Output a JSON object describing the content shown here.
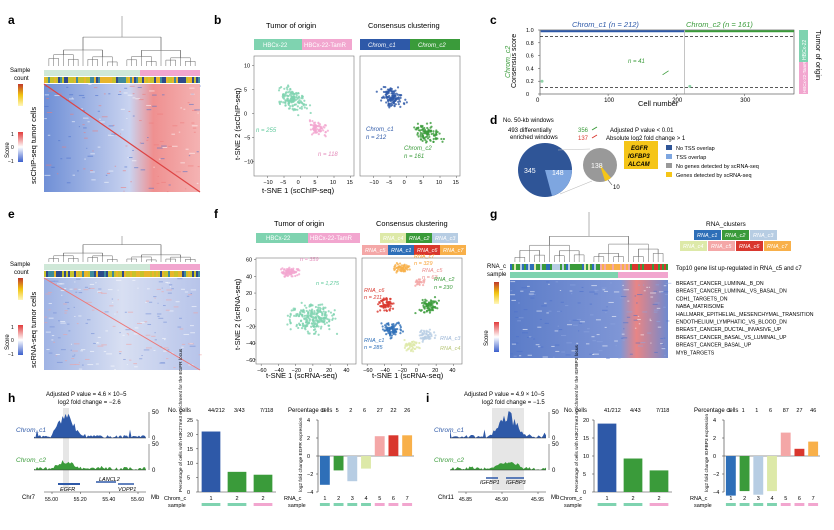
{
  "panels": {
    "a": {
      "letter": "a",
      "y_label": "scChIP-seq tumor cells",
      "sample_label": "Sample",
      "count_label": "count",
      "score_label": "Score",
      "score_ticks": [
        "1",
        "0",
        "−1"
      ]
    },
    "b": {
      "letter": "b",
      "header_left": "Tumor of origin",
      "header_right": "Consensus clustering",
      "legend_left": [
        "HBCx-22",
        "HBCx-22-TamR"
      ],
      "legend_right": [
        "Chrom_c1",
        "Chrom_c2"
      ],
      "xlabel": "t-SNE 1 (scChIP-seq)",
      "ylabel": "t-SNE 2 (scChIP-seq)",
      "n_left_1": "n = 255",
      "n_left_2": "n = 118",
      "cluster_c1": "Chrom_c1",
      "cluster_c1_n": "n = 212",
      "cluster_c2": "Chrom_c2",
      "cluster_c2_n": "n = 161"
    },
    "c": {
      "letter": "c",
      "title_c1": "Chrom_c1 (n = 212)",
      "title_c2": "Chrom_c2 (n = 161)",
      "ylabel": "Consensus score",
      "xlabel": "Cell number",
      "inset_c2": "Chrom_c2",
      "inset_n": "n = 41",
      "right_label": "Tumor of origin",
      "right_bar_1": "HBCx-22",
      "right_bar_2": "HBCx-22-TamR"
    },
    "d": {
      "letter": "d",
      "windows_line1": "No. 50-kb windows",
      "windows_line2": "493 differentially",
      "windows_line3": "enriched windows",
      "up_count": "356",
      "down_count": "137",
      "criteria_1": "Adjusted P value < 0.01",
      "criteria_2": "Absolute log2 fold change > 1",
      "pie_big_a": "345",
      "pie_big_b": "148",
      "pie_small_a": "138",
      "pie_small_b": "10",
      "genes": [
        "EGFR",
        "IGFBP3",
        "ALCAM"
      ],
      "legend": [
        "No TSS overlap",
        "TSS overlap",
        "No genes detected by scRNA-seq",
        "Genes detected by scRNA-seq"
      ]
    },
    "e": {
      "letter": "e",
      "y_label": "scRNA-seq tumor cells",
      "sample_label": "Sample",
      "count_label": "count",
      "score_label": "Score",
      "score_ticks": [
        "1",
        "0",
        "−1"
      ]
    },
    "f": {
      "letter": "f",
      "header_left": "Tumor of origin",
      "header_right": "Consensus clustering",
      "legend_left": [
        "HBCx-22",
        "HBCx-22-TamR"
      ],
      "legend_right": [
        "RNA_c1",
        "RNA_c2",
        "RNA_c3",
        "RNA_c4",
        "RNA_c5",
        "RNA_c6",
        "RNA_c7"
      ],
      "xlabel": "t-SNE 1 (scRNA-seq)",
      "ylabel": "t-SNE 2 (scRNA-seq)",
      "n_left_top": "n = 359",
      "n_left_bottom": "n = 1,275",
      "label_c7": "RNA_c7",
      "label_c7_n": "n = 329",
      "label_c5": "RNA_c5",
      "label_c5_n": "n = 63",
      "label_c6": "RNA_c6",
      "label_c6_n": "n = 211",
      "label_c2": "RNA_c2",
      "label_c2_n": "n = 230",
      "label_c1": "RNA_c1",
      "label_c1_n": "n = 285",
      "label_c4": "RNA_c4",
      "label_c3": "RNA_c3"
    },
    "g": {
      "letter": "g",
      "legend_title": "RNA_clusters",
      "legend": [
        "RNA_c1",
        "RNA_c2",
        "RNA_c3",
        "RNA_c4",
        "RNA_c5",
        "RNA_c6",
        "RNA_c7"
      ],
      "row_label_top": "RNA_c",
      "row_label_bottom": "sample",
      "gene_title": "Top10 gene list up-regulated in RNA_c5 and c7",
      "genes": [
        "BREAST_CANCER_LUMINAL_B_DN",
        "BREAST_CANCER_LUMINAL_VS_BASAL_DN",
        "CDH1_TARGETS_DN",
        "NABA_MATRISOME",
        "HALLMARK_EPITHELIAL_MESENCHYMAL_TRANSITION",
        "ENDOTHELIUM_LYMPHATIC_VS_BLOOD_DN",
        "BREAST_CANCER_DUCTAL_INVASIVE_UP",
        "BREAST_CANCER_BASAL_VS_LUMINAL_UP",
        "BREAST_CANCER_BASAL_UP",
        "MYB_TARGETS"
      ],
      "score_label": "Score"
    },
    "h": {
      "letter": "h",
      "pval": "Adjusted P value = 4.6 × 10−5",
      "fc": "log2 fold change = −2.6",
      "track1": "Chrom_c1",
      "track2": "Chrom_c2",
      "track_max": "50",
      "track_min": "0",
      "gene1": "EGFR",
      "gene2": "LANCL2",
      "gene3": "VOPP1",
      "chr": "Chr7",
      "ticks": [
        "55.00",
        "55.20",
        "55.40",
        "55.60"
      ],
      "mb": "Mb"
    },
    "i": {
      "letter": "i",
      "pval": "Adjusted P value = 4.9 × 10−5",
      "fc": "log2 fold change = −1.5",
      "track1": "Chrom_c1",
      "track2": "Chrom_c2",
      "track_max": "50",
      "track_min": "0",
      "gene1": "IGFBP1",
      "gene2": "IGFBP3",
      "chr": "Chr11",
      "ticks": [
        "45.85",
        "45.90",
        "45.95"
      ],
      "mb": "Mb"
    }
  },
  "chart_data": [
    {
      "type": "bar",
      "id": "h_chip",
      "title": "No. cells",
      "header_values": [
        "44/212",
        "3/43",
        "7/118"
      ],
      "categories": [
        "1",
        "2",
        "2"
      ],
      "values": [
        21,
        7,
        6
      ],
      "ylim": [
        0,
        25
      ],
      "yticks": [
        "0",
        "5",
        "10",
        "15",
        "20",
        "25"
      ],
      "ylabel": "Percentage of cells with H3K27me3 enrichment for the EGFR locus",
      "xlabel_1": "Chrom_c",
      "xlabel_2": "sample",
      "colors": [
        "#2e59a8",
        "#3a9b3a",
        "#3a9b3a"
      ]
    },
    {
      "type": "bar",
      "id": "h_rna",
      "title": "Percentage cells",
      "header_values": [
        "0",
        "5",
        "2",
        "6",
        "27",
        "22",
        "26"
      ],
      "categories": [
        "1",
        "2",
        "3",
        "4",
        "5",
        "6",
        "7"
      ],
      "values": [
        -3.2,
        -1.6,
        -2.8,
        -1.4,
        2.2,
        2.3,
        2.3
      ],
      "ylim": [
        -4,
        4
      ],
      "yticks": [
        "−4",
        "−2",
        "0",
        "2",
        "4"
      ],
      "ylabel": "log2 fold change EGFR expression",
      "xlabel_1": "RNA_c",
      "xlabel_2": "sample",
      "colors": [
        "#2e6fb8",
        "#3a9b3a",
        "#b7cde3",
        "#dde9a8",
        "#f4a7a7",
        "#d9372e",
        "#f8b04a"
      ]
    },
    {
      "type": "bar",
      "id": "i_chip",
      "title": "No. cells",
      "header_values": [
        "41/212",
        "4/43",
        "7/118"
      ],
      "categories": [
        "1",
        "2",
        "2"
      ],
      "values": [
        19,
        9.3,
        6
      ],
      "ylim": [
        0,
        20
      ],
      "yticks": [
        "0",
        "5",
        "10",
        "15",
        "20"
      ],
      "ylabel": "Percentage of cells with H3K27me3 enrichment for the IGFBP3 locus",
      "xlabel_1": "Chrom_c",
      "xlabel_2": "sample",
      "colors": [
        "#2e59a8",
        "#3a9b3a",
        "#3a9b3a"
      ]
    },
    {
      "type": "bar",
      "id": "i_rna",
      "title": "Percentage cells",
      "header_values": [
        "1",
        "1",
        "1",
        "6",
        "87",
        "27",
        "46"
      ],
      "categories": [
        "1",
        "2",
        "3",
        "4",
        "5",
        "6",
        "7"
      ],
      "values": [
        -4.4,
        -3.9,
        -4.3,
        -3.9,
        2.6,
        0.8,
        1.6
      ],
      "ylim": [
        -4,
        4
      ],
      "yticks": [
        "−4",
        "−2",
        "0",
        "2",
        "4"
      ],
      "ylabel": "log2 fold change IGFBP3 expression",
      "xlabel_1": "RNA_c",
      "xlabel_2": "sample",
      "colors": [
        "#2e6fb8",
        "#3a9b3a",
        "#b7cde3",
        "#dde9a8",
        "#f4a7a7",
        "#d9372e",
        "#f8b04a"
      ]
    },
    {
      "type": "scatter",
      "id": "c_consensus",
      "xlabel": "Cell number",
      "ylabel": "Consensus score",
      "xlim": [
        0,
        373
      ],
      "ylim": [
        0,
        1
      ],
      "xticks": [
        "0",
        "100",
        "200",
        "300"
      ],
      "yticks": [
        "0",
        "0.2",
        "0.4",
        "0.6",
        "0.8",
        "1.0"
      ],
      "series": [
        {
          "name": "Chrom_c1",
          "x_range": [
            1,
            212
          ],
          "value": 0.98,
          "color": "#2e59a8"
        },
        {
          "name": "Chrom_c2",
          "x_range": [
            213,
            373
          ],
          "value": 0.98,
          "color": "#3a9b3a"
        }
      ],
      "thresholds": [
        0.9,
        0.1
      ]
    }
  ],
  "colors": {
    "hbcx22": "#7fd3b0",
    "tamr": "#f2a6cf",
    "chrom_c1": "#2e59a8",
    "chrom_c2": "#3a9b3a",
    "rna_c1": "#2e6fb8",
    "rna_c2": "#3a9b3a",
    "rna_c3": "#b7cde3",
    "rna_c4": "#dde9a8",
    "rna_c5": "#f4a7a7",
    "rna_c6": "#d9372e",
    "rna_c7": "#f8b04a"
  }
}
